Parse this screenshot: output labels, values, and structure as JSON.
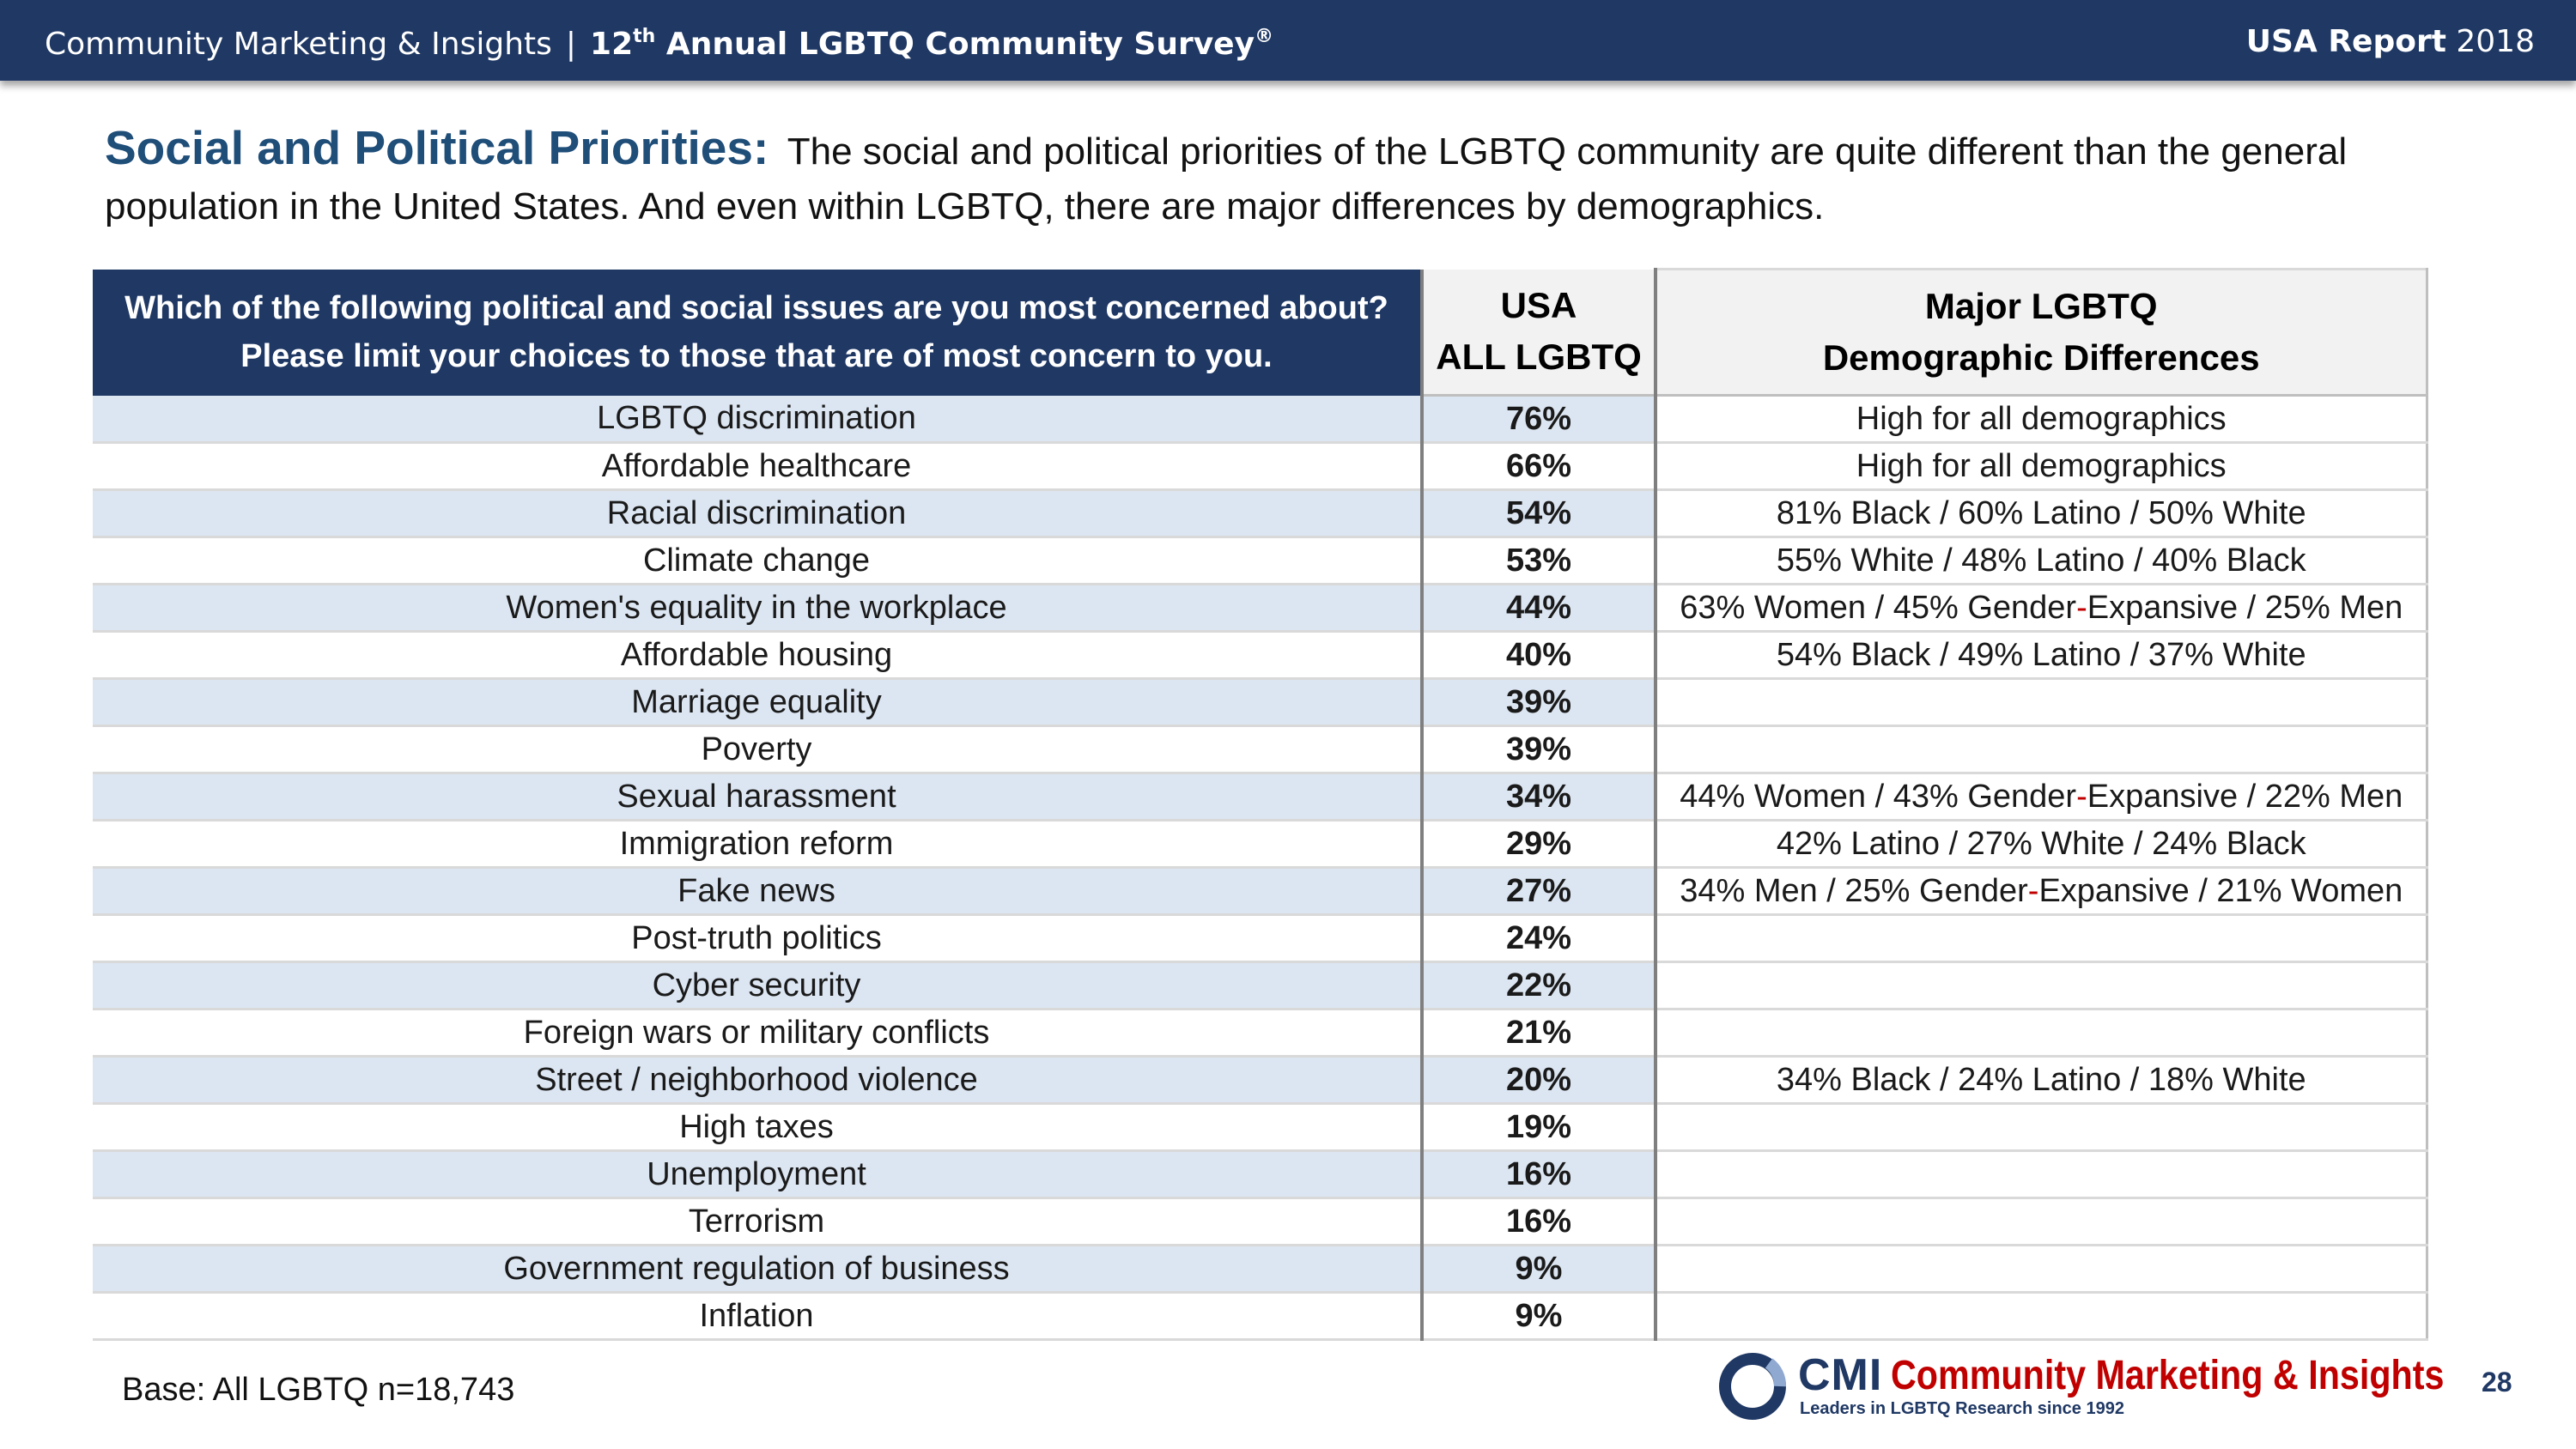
{
  "header": {
    "org": "Community Marketing & Insights",
    "separator": "|",
    "survey_prefix": "12",
    "survey_ordinal": "th",
    "survey_suffix": " Annual LGBTQ Community Survey",
    "registered_mark": "®",
    "report_label": "USA Report",
    "report_year": "2018"
  },
  "heading": {
    "title": "Social and Political Priorities:",
    "text": "The social and political priorities of the LGBTQ community are quite different than the general population in the United States.  And even within LGBTQ, there are major differences by demographics."
  },
  "table": {
    "question_line1": "Which of the following political and social issues are you most concerned about?",
    "question_line2": "Please limit your choices to those that are of most concern to you.",
    "usa_header_line1": "USA",
    "usa_header_line2": "ALL LGBTQ",
    "demo_header_line1": "Major LGBTQ",
    "demo_header_line2": "Demographic Differences",
    "rows": [
      {
        "issue": "LGBTQ discrimination",
        "pct": "76%",
        "diff": "High for all demographics"
      },
      {
        "issue": "Affordable healthcare",
        "pct": "66%",
        "diff": "High for all demographics"
      },
      {
        "issue": "Racial discrimination",
        "pct": "54%",
        "diff": "81% Black  /  60% Latino  /  50% White"
      },
      {
        "issue": "Climate change",
        "pct": "53%",
        "diff": "55% White  /  48% Latino  /  40% Black"
      },
      {
        "issue": "Women's equality in the workplace",
        "pct": "44%",
        "diff_a": "63% Women / 45% Gender",
        "diff_hy": "-",
        "diff_b": "Expansive / 25% Men"
      },
      {
        "issue": "Affordable housing",
        "pct": "40%",
        "diff": "54% Black  /  49% Latino  /  37% White"
      },
      {
        "issue": "Marriage equality",
        "pct": "39%",
        "diff": ""
      },
      {
        "issue": "Poverty",
        "pct": "39%",
        "diff": ""
      },
      {
        "issue": "Sexual harassment",
        "pct": "34%",
        "diff_a": "44% Women / 43% Gender",
        "diff_hy": "-",
        "diff_b": "Expansive / 22% Men"
      },
      {
        "issue": "Immigration reform",
        "pct": "29%",
        "diff": "42% Latino  /  27% White  /  24% Black"
      },
      {
        "issue": "Fake news",
        "pct": "27%",
        "diff_a": "34% Men / 25% Gender",
        "diff_hy": "-",
        "diff_b": "Expansive / 21% Women"
      },
      {
        "issue": "Post-truth politics",
        "pct": "24%",
        "diff": ""
      },
      {
        "issue": "Cyber security",
        "pct": "22%",
        "diff": ""
      },
      {
        "issue": "Foreign wars or military conflicts",
        "pct": "21%",
        "diff": ""
      },
      {
        "issue": "Street / neighborhood violence",
        "pct": "20%",
        "diff": "34% Black  /  24% Latino  /  18% White"
      },
      {
        "issue": "High taxes",
        "pct": "19%",
        "diff": ""
      },
      {
        "issue": "Unemployment",
        "pct": "16%",
        "diff": ""
      },
      {
        "issue": "Terrorism",
        "pct": "16%",
        "diff": ""
      },
      {
        "issue": "Government regulation of business",
        "pct": "9%",
        "diff": ""
      },
      {
        "issue": "Inflation",
        "pct": "9%",
        "diff": ""
      }
    ]
  },
  "footer": {
    "base": "Base: All LGBTQ n=18,743",
    "logo_cmi": "CMI",
    "logo_brand": "Community Marketing & Insights",
    "logo_tagline": "Leaders in LGBTQ Research since 1992",
    "page_number": "28"
  },
  "colors": {
    "banner": "#1f3864",
    "title_blue": "#1f4e79",
    "row_shade": "#dce6f2",
    "hyphen_red": "#c00000"
  }
}
